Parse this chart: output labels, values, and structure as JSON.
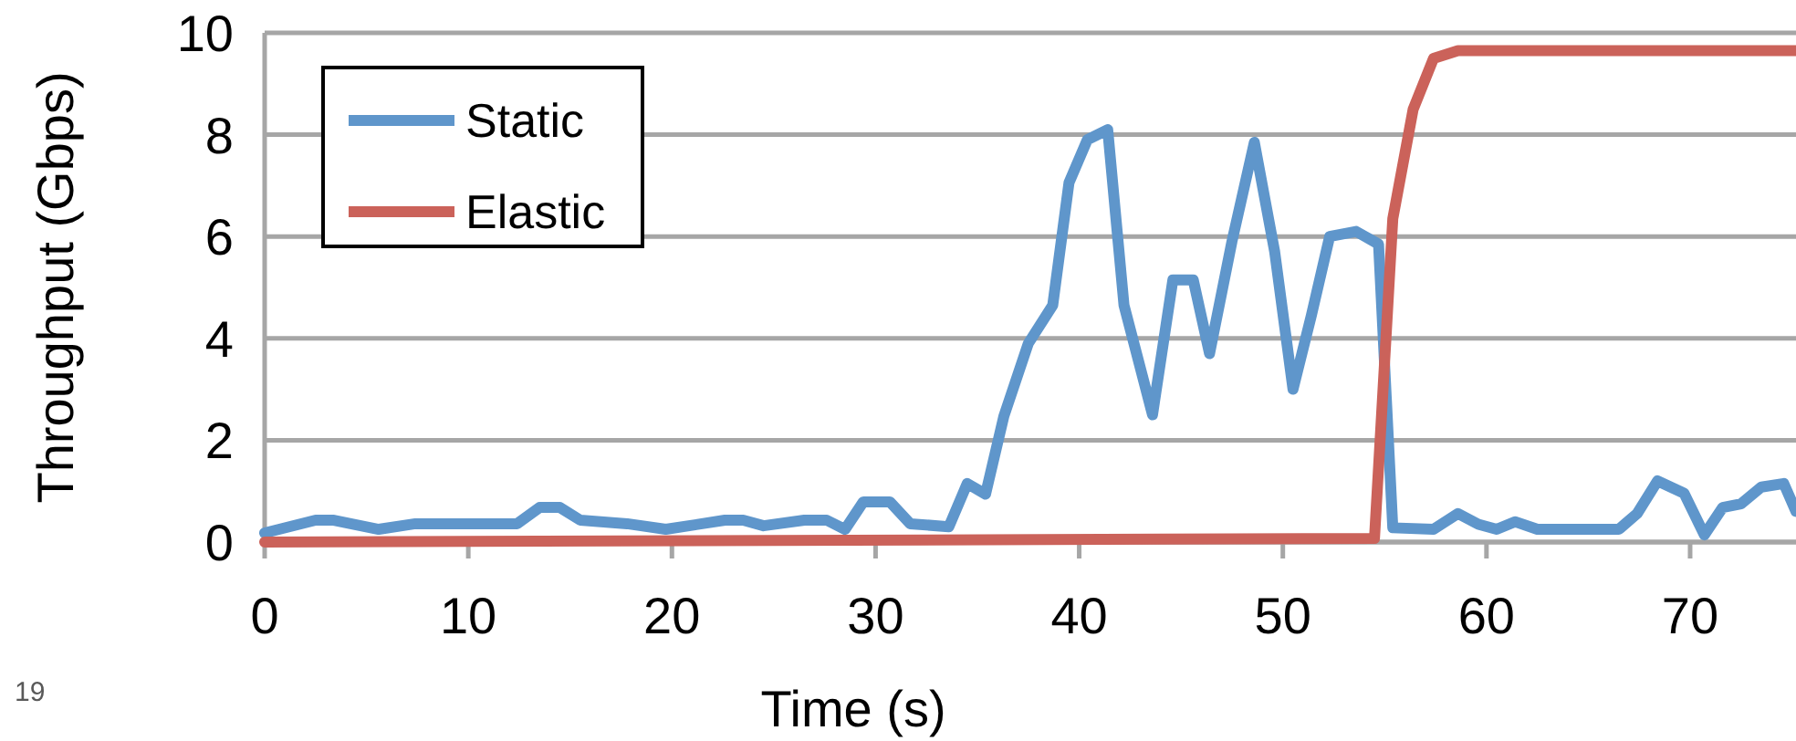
{
  "chart_data": {
    "type": "line",
    "xlabel": "Time (s)",
    "ylabel": "Throughput (Gbps)",
    "xlim": [
      0,
      75.2
    ],
    "xticks": [
      0,
      10,
      20,
      30,
      40,
      50,
      60,
      70
    ],
    "ylim": [
      0,
      10
    ],
    "yticks": [
      0,
      2,
      4,
      6,
      8,
      10
    ],
    "grid": "y",
    "legend": "top left",
    "marker": "none",
    "line_style": "solid",
    "annotations": [
      "19"
    ],
    "series": [
      {
        "name": "Static",
        "color": "#5f96cb",
        "x": [
          0,
          2.5,
          3.4,
          5.6,
          7.4,
          12.4,
          13.5,
          14.5,
          15.5,
          17.8,
          19.7,
          22.6,
          23.5,
          24.5,
          26.5,
          27.6,
          28.5,
          29.4,
          30.7,
          31.7,
          33.6,
          34.5,
          35.4,
          36.3,
          37.5,
          38.7,
          39.5,
          40.4,
          41.4,
          42.2,
          43.6,
          44.6,
          45.6,
          46.4,
          47.5,
          48.6,
          49.6,
          50.5,
          51.4,
          52.3,
          53.6,
          54.7,
          55.4,
          57.4,
          58.6,
          59.6,
          60.5,
          61.4,
          62.5,
          66.5,
          67.4,
          68.4,
          69.7,
          70.7,
          71.6,
          72.5,
          73.5,
          74.6,
          75.2
        ],
        "values": [
          0.18,
          0.43,
          0.43,
          0.25,
          0.36,
          0.36,
          0.68,
          0.68,
          0.43,
          0.36,
          0.25,
          0.43,
          0.43,
          0.32,
          0.43,
          0.43,
          0.25,
          0.79,
          0.79,
          0.36,
          0.3,
          1.15,
          0.94,
          2.47,
          3.9,
          4.65,
          7.06,
          7.9,
          8.1,
          4.65,
          2.5,
          5.15,
          5.15,
          3.7,
          5.9,
          7.85,
          5.7,
          3.0,
          4.45,
          6.0,
          6.1,
          5.85,
          0.28,
          0.25,
          0.56,
          0.35,
          0.25,
          0.4,
          0.25,
          0.25,
          0.56,
          1.2,
          0.96,
          0.14,
          0.68,
          0.75,
          1.08,
          1.15,
          0.6
        ]
      },
      {
        "name": "Elastic",
        "color": "#cb625a",
        "x": [
          0,
          54.5,
          55.4,
          56.4,
          57.4,
          58.6,
          75.2
        ],
        "values": [
          0,
          0.07,
          6.35,
          8.5,
          9.5,
          9.65,
          9.65
        ]
      }
    ]
  }
}
